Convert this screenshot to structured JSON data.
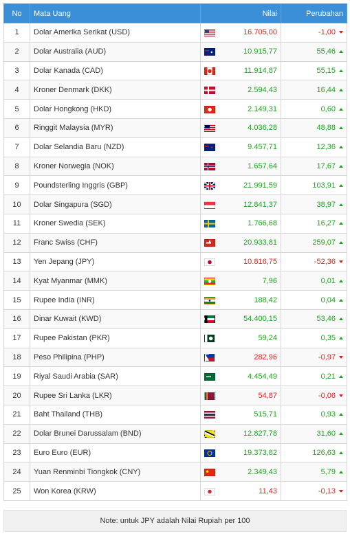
{
  "header": {
    "no": "No",
    "currency": "Mata Uang",
    "value": "Nilai",
    "change": "Perubahan"
  },
  "rows": [
    {
      "no": "1",
      "name": "Dolar Amerika Serikat (USD)",
      "flag": "us-flag-icon",
      "value": "16.705,00",
      "change": "-1,00",
      "direction": "down"
    },
    {
      "no": "2",
      "name": "Dolar Australia (AUD)",
      "flag": "au-flag-icon",
      "value": "10.915,77",
      "change": "55,46",
      "direction": "up"
    },
    {
      "no": "3",
      "name": "Dolar Kanada (CAD)",
      "flag": "ca-flag-icon",
      "value": "11.914,87",
      "change": "55,15",
      "direction": "up"
    },
    {
      "no": "4",
      "name": "Kroner Denmark (DKK)",
      "flag": "dk-flag-icon",
      "value": "2.594,43",
      "change": "16,44",
      "direction": "up"
    },
    {
      "no": "5",
      "name": "Dolar Hongkong (HKD)",
      "flag": "hk-flag-icon",
      "value": "2.149,31",
      "change": "0,60",
      "direction": "up"
    },
    {
      "no": "6",
      "name": "Ringgit Malaysia (MYR)",
      "flag": "my-flag-icon",
      "value": "4.036,28",
      "change": "48,88",
      "direction": "up"
    },
    {
      "no": "7",
      "name": "Dolar Selandia Baru (NZD)",
      "flag": "nz-flag-icon",
      "value": "9.457,71",
      "change": "12,36",
      "direction": "up"
    },
    {
      "no": "8",
      "name": "Kroner Norwegia (NOK)",
      "flag": "no-flag-icon",
      "value": "1.657,64",
      "change": "17,67",
      "direction": "up"
    },
    {
      "no": "9",
      "name": "Poundsterling Inggris (GBP)",
      "flag": "gb-flag-icon",
      "value": "21.991,59",
      "change": "103,91",
      "direction": "up"
    },
    {
      "no": "10",
      "name": "Dolar Singapura (SGD)",
      "flag": "sg-flag-icon",
      "value": "12.841,37",
      "change": "38,97",
      "direction": "up"
    },
    {
      "no": "11",
      "name": "Kroner Swedia (SEK)",
      "flag": "se-flag-icon",
      "value": "1.766,68",
      "change": "16,27",
      "direction": "up"
    },
    {
      "no": "12",
      "name": "Franc Swiss (CHF)",
      "flag": "ch-flag-icon",
      "value": "20.933,81",
      "change": "259,07",
      "direction": "up"
    },
    {
      "no": "13",
      "name": "Yen Jepang (JPY)",
      "flag": "jp-flag-icon",
      "value": "10.816,75",
      "change": "-52,36",
      "direction": "down"
    },
    {
      "no": "14",
      "name": "Kyat Myanmar (MMK)",
      "flag": "mm-flag-icon",
      "value": "7,96",
      "change": "0,01",
      "direction": "up"
    },
    {
      "no": "15",
      "name": "Rupee India (INR)",
      "flag": "in-flag-icon",
      "value": "188,42",
      "change": "0,04",
      "direction": "up"
    },
    {
      "no": "16",
      "name": "Dinar Kuwait (KWD)",
      "flag": "kw-flag-icon",
      "value": "54.400,15",
      "change": "53,46",
      "direction": "up"
    },
    {
      "no": "17",
      "name": "Rupee Pakistan (PKR)",
      "flag": "pk-flag-icon",
      "value": "59,24",
      "change": "0,35",
      "direction": "up"
    },
    {
      "no": "18",
      "name": "Peso Philipina (PHP)",
      "flag": "ph-flag-icon",
      "value": "282,96",
      "change": "-0,97",
      "direction": "down"
    },
    {
      "no": "19",
      "name": "Riyal Saudi Arabia (SAR)",
      "flag": "sa-flag-icon",
      "value": "4.454,49",
      "change": "0,21",
      "direction": "up"
    },
    {
      "no": "20",
      "name": "Rupee Sri Lanka (LKR)",
      "flag": "lk-flag-icon",
      "value": "54,87",
      "change": "-0,06",
      "direction": "down"
    },
    {
      "no": "21",
      "name": "Baht Thailand (THB)",
      "flag": "th-flag-icon",
      "value": "515,71",
      "change": "0,93",
      "direction": "up"
    },
    {
      "no": "22",
      "name": "Dolar Brunei Darussalam (BND)",
      "flag": "bn-flag-icon",
      "value": "12.827,78",
      "change": "31,60",
      "direction": "up"
    },
    {
      "no": "23",
      "name": "Euro Euro (EUR)",
      "flag": "eu-flag-icon",
      "value": "19.373,82",
      "change": "126,63",
      "direction": "up"
    },
    {
      "no": "24",
      "name": "Yuan Renminbi Tiongkok (CNY)",
      "flag": "cn-flag-icon",
      "value": "2.349,43",
      "change": "5,79",
      "direction": "up"
    },
    {
      "no": "25",
      "name": "Won Korea (KRW)",
      "flag": "kr-flag-icon",
      "value": "11,43",
      "change": "-0,13",
      "direction": "down"
    }
  ],
  "note": "Note: untuk JPY adalah Nilai Rupiah per 100",
  "colors": {
    "header_bg": "#3b8fd9",
    "up": "#1aa51a",
    "down": "#e61e1e"
  }
}
